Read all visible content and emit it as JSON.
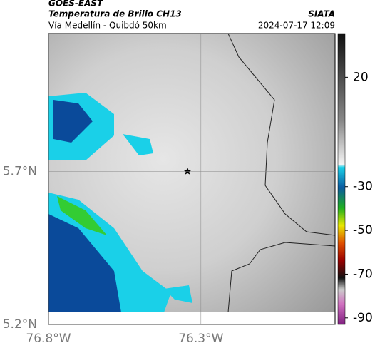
{
  "header": {
    "source": "GOES-EAST",
    "product": "Temperatura de Brillo CH13",
    "agency": "SIATA",
    "region": "Vía Medellín - Quibdó 50km",
    "datetime": "2024-07-17 12:09"
  },
  "map": {
    "lon_lim": [
      -76.8,
      -75.86
    ],
    "lat_lim": [
      5.2,
      6.15
    ],
    "lon_ticks": [
      {
        "value": -76.8,
        "label": "76.8°W"
      },
      {
        "value": -76.3,
        "label": "76.3°W"
      }
    ],
    "lat_ticks": [
      {
        "value": 5.7,
        "label": "5.7°N"
      },
      {
        "value": 5.2,
        "label": "5.2°N"
      }
    ]
  },
  "colorbar": {
    "lim": [
      -93,
      40
    ],
    "ticks": [
      20,
      -30,
      -50,
      -70,
      -90
    ]
  }
}
